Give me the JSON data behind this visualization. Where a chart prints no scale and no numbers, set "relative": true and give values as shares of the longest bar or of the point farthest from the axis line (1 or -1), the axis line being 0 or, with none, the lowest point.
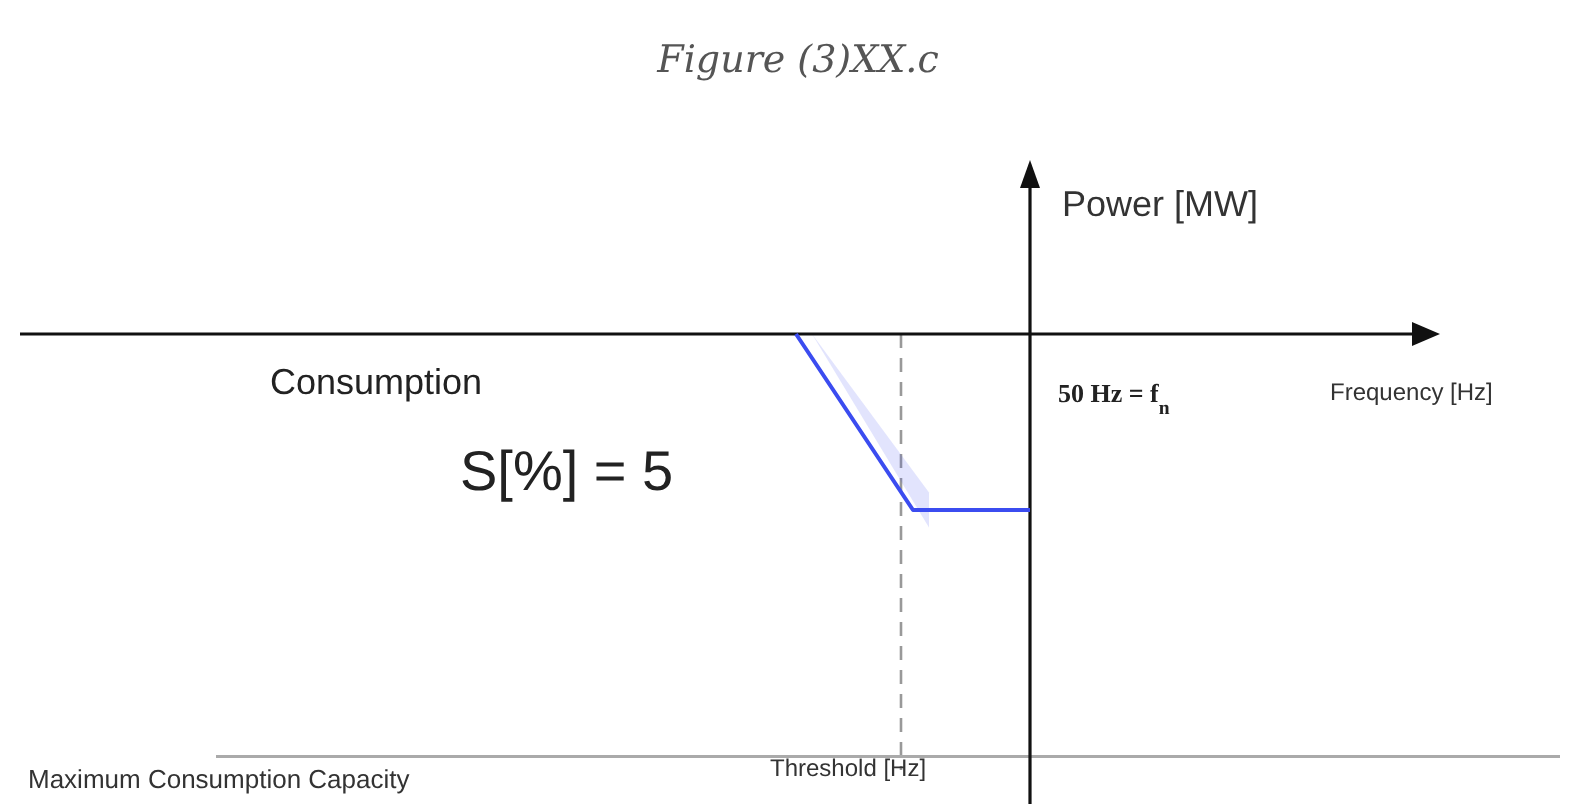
{
  "chart_data": {
    "type": "line",
    "title": "Figure (3)XX.c",
    "ylabel": "Power [MW]",
    "relative": true,
    "categories": [
      null,
      null,
      null
    ],
    "series": [
      {
        "color": "#3b4cf0",
        "values": [
          0,
          -1,
          -1
        ],
        "lower": [
          0,
          -1.1,
          null
        ],
        "upper": [
          0,
          -0.9,
          null
        ]
      }
    ],
    "ref_lines": [
      {
        "axis": "y",
        "value": -2.4,
        "label": "Maximum Consumption Capacity",
        "color": "#aaaaaa",
        "line_style": "solid"
      }
    ],
    "annotations": [
      "Consumption",
      "S[%] = 5",
      "50 Hz = f$_{n}$",
      "Frequency [Hz]",
      "Threshold [Hz]"
    ],
    "line_style": "solid"
  }
}
